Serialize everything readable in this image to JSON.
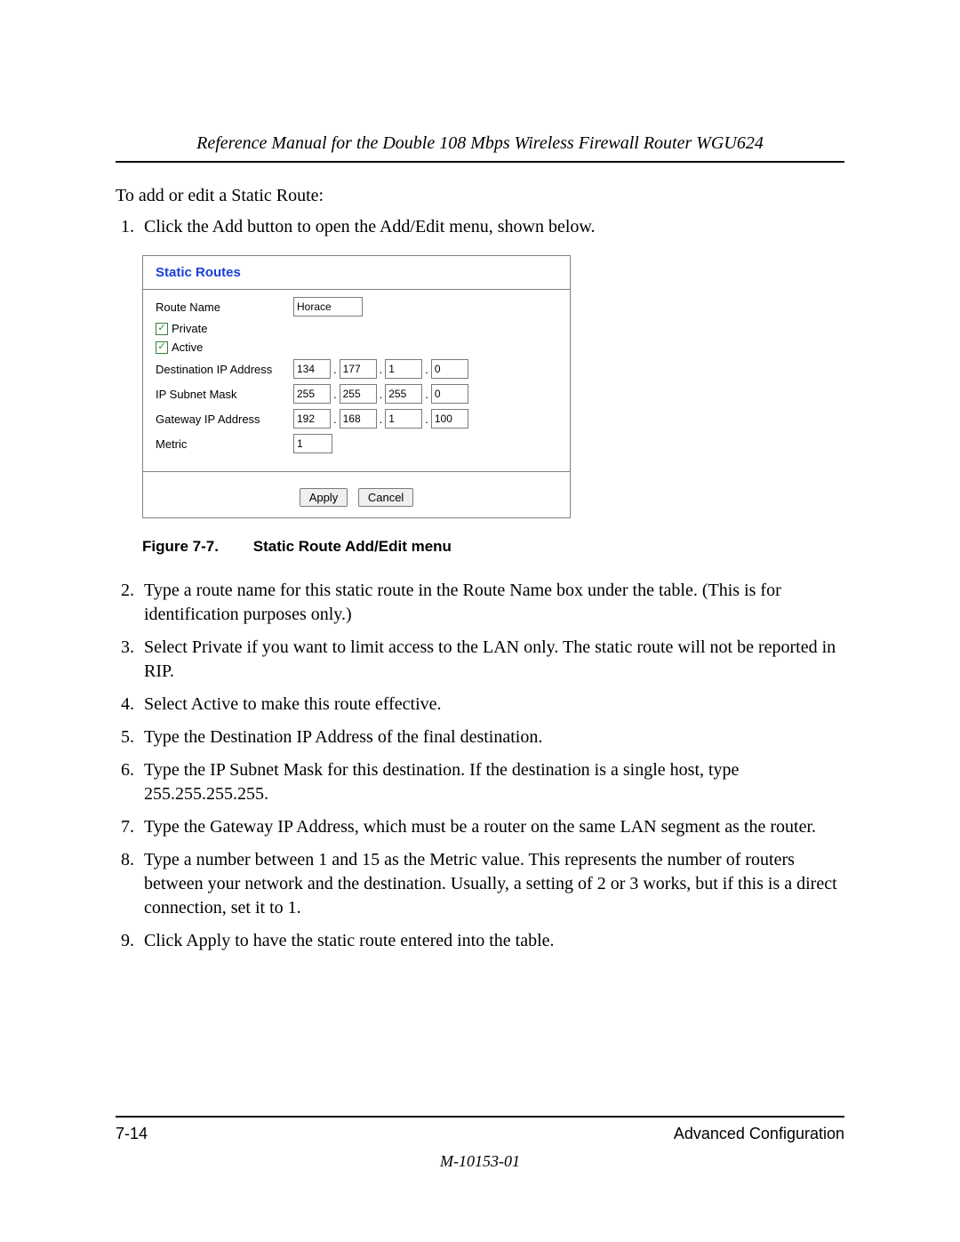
{
  "header": {
    "running_title": "Reference Manual for the Double 108 Mbps Wireless Firewall Router WGU624"
  },
  "intro_text": "To add or edit a Static Route:",
  "steps_pre_figure": [
    "Click the Add button to open the Add/Edit menu, shown below."
  ],
  "figure": {
    "caption_number": "Figure 7-7.",
    "caption_title": "Static Route Add/Edit menu",
    "panel_title": "Static Routes",
    "route_name_label": "Route Name",
    "route_name_value": "Horace",
    "private_label": "Private",
    "private_checked": true,
    "active_label": "Active",
    "active_checked": true,
    "dest_ip_label": "Destination IP Address",
    "dest_ip": [
      "134",
      "177",
      "1",
      "0"
    ],
    "mask_label": "IP Subnet Mask",
    "mask": [
      "255",
      "255",
      "255",
      "0"
    ],
    "gateway_label": "Gateway IP Address",
    "gateway": [
      "192",
      "168",
      "1",
      "100"
    ],
    "metric_label": "Metric",
    "metric_value": "1",
    "apply_label": "Apply",
    "cancel_label": "Cancel",
    "checkmark_glyph": "✓",
    "dot": "."
  },
  "steps_post_figure": [
    "Type a route name for this static route in the Route Name box under the table. (This is for identification purposes only.)",
    "Select Private if you want to limit access to the LAN only. The static route will not be reported in RIP.",
    "Select Active to make this route effective.",
    "Type the Destination IP Address of the final destination.",
    "Type the IP Subnet Mask for this destination. If the destination is a single host, type 255.255.255.255.",
    "Type the Gateway IP Address, which must be a router on the same LAN segment as the router.",
    "Type a number between 1 and 15 as the Metric value. This represents the number of routers between your network and the destination. Usually, a setting of 2 or 3 works, but if this is a direct connection, set it to 1.",
    "Click Apply to have the static route entered into the table."
  ],
  "footer": {
    "page_number": "7-14",
    "section": "Advanced Configuration",
    "doc_number": "M-10153-01"
  }
}
